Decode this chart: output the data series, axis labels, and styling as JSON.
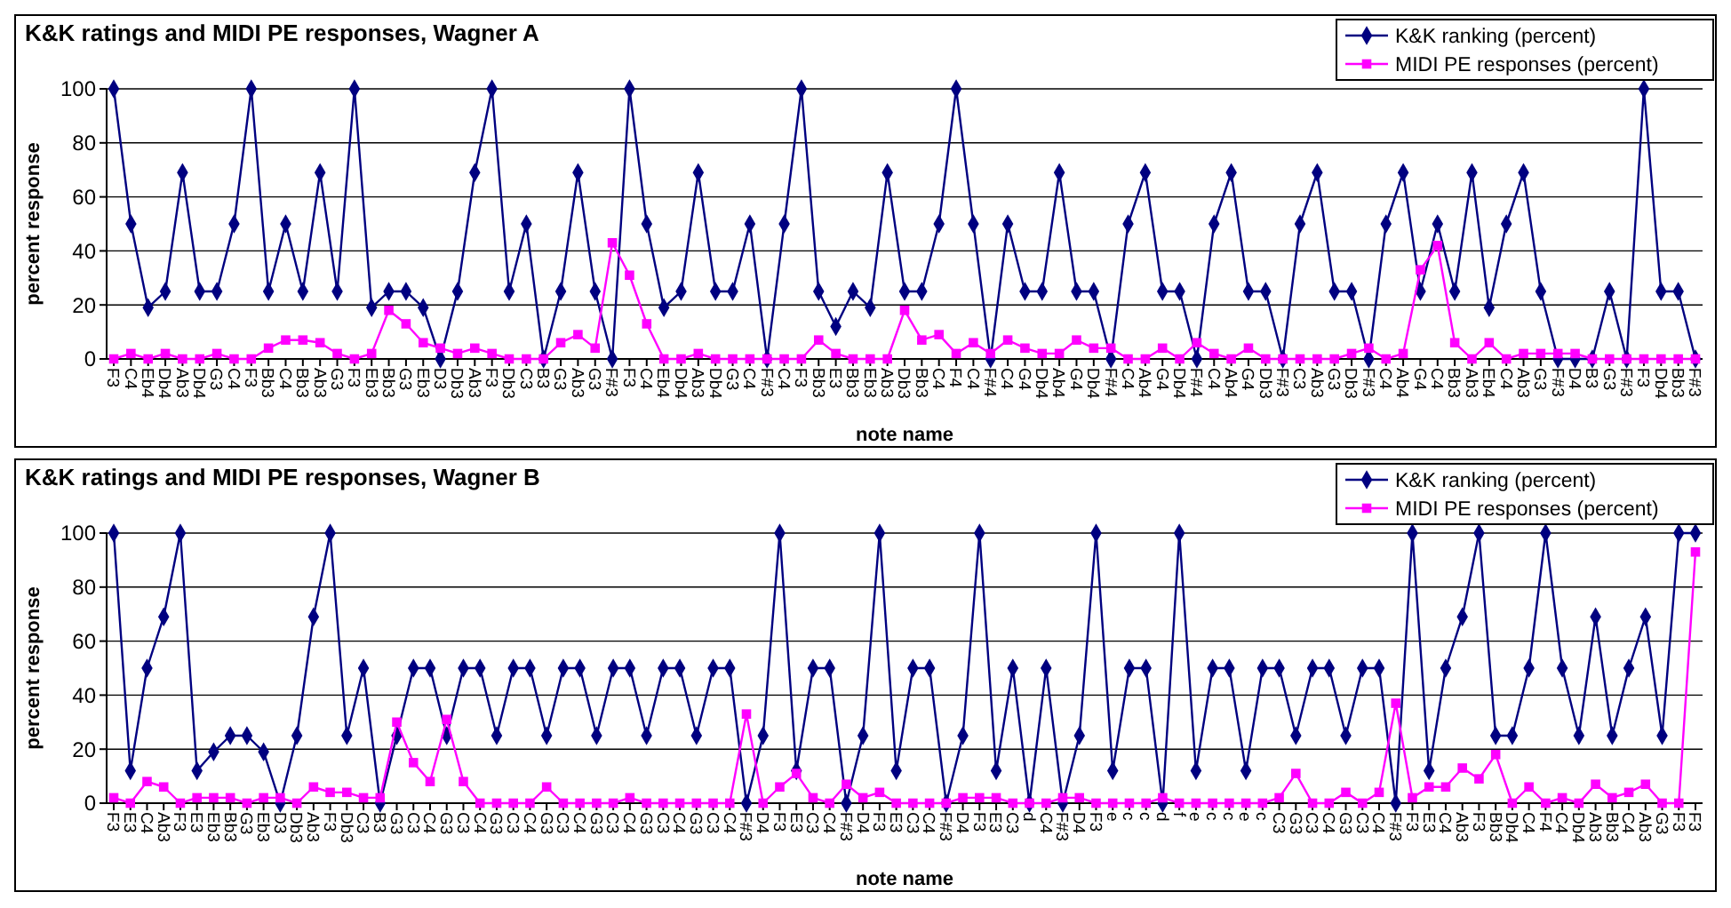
{
  "chart_data": [
    {
      "type": "line",
      "title": "K&K ratings and MIDI PE responses, Wagner A",
      "xlabel": "note name",
      "ylabel": "percent response",
      "ylim": [
        0,
        100
      ],
      "yticks": [
        0,
        20,
        40,
        60,
        80,
        100
      ],
      "grid": "y",
      "legend": "top right",
      "categories": [
        "F3",
        "C4",
        "Eb4",
        "Db4",
        "Ab3",
        "Db4",
        "G3",
        "C4",
        "F3",
        "Bb3",
        "C4",
        "Bb3",
        "Ab3",
        "G3",
        "F3",
        "Eb3",
        "Bb3",
        "G3",
        "Eb3",
        "D3",
        "Db3",
        "Ab3",
        "F3",
        "Db3",
        "C3",
        "B3",
        "G3",
        "Ab3",
        "G3",
        "F#3",
        "F3",
        "C4",
        "Eb4",
        "Db4",
        "Ab3",
        "Db4",
        "G3",
        "C4",
        "F#3",
        "C4",
        "F3",
        "Bb3",
        "E3",
        "Bb3",
        "Eb3",
        "Ab3",
        "Db3",
        "Bb3",
        "C4",
        "F4",
        "C4",
        "F#4",
        "C4",
        "G4",
        "Db4",
        "Ab4",
        "G4",
        "Db4",
        "F#4",
        "C4",
        "Ab4",
        "G4",
        "Db4",
        "F#4",
        "C4",
        "Ab4",
        "G4",
        "Db3",
        "F#3",
        "C3",
        "Ab3",
        "G3",
        "Db3",
        "F#3",
        "C4",
        "Ab4",
        "G4",
        "C4",
        "Bb3",
        "Ab3",
        "Eb4",
        "C4",
        "Ab3",
        "G3",
        "F#3",
        "D4",
        "B3",
        "G3",
        "F#3",
        "F3",
        "Db4",
        "Bb3",
        "F#3"
      ],
      "series": [
        {
          "name": "K&K ranking (percent)",
          "color": "#000080",
          "marker": "diamond",
          "values": [
            100,
            50,
            19,
            25,
            69,
            25,
            25,
            50,
            100,
            25,
            50,
            25,
            69,
            25,
            100,
            19,
            25,
            25,
            19,
            0,
            25,
            69,
            100,
            25,
            50,
            0,
            25,
            69,
            25,
            0,
            100,
            50,
            19,
            25,
            69,
            25,
            25,
            50,
            0,
            50,
            100,
            25,
            12,
            25,
            19,
            69,
            25,
            25,
            50,
            100,
            50,
            0,
            50,
            25,
            25,
            69,
            25,
            25,
            0,
            50,
            69,
            25,
            25,
            0,
            50,
            69,
            25,
            25,
            0,
            50,
            69,
            25,
            25,
            0,
            50,
            69,
            25,
            50,
            25,
            69,
            19,
            50,
            69,
            25,
            0,
            0,
            0,
            25,
            0,
            100,
            25,
            25,
            0
          ]
        },
        {
          "name": "MIDI PE responses (percent)",
          "color": "#ff00ff",
          "marker": "square",
          "values": [
            0,
            2,
            0,
            2,
            0,
            0,
            2,
            0,
            0,
            4,
            7,
            7,
            6,
            2,
            0,
            2,
            18,
            13,
            6,
            4,
            2,
            4,
            2,
            0,
            0,
            0,
            6,
            9,
            4,
            43,
            31,
            13,
            0,
            0,
            2,
            0,
            0,
            0,
            0,
            0,
            0,
            7,
            2,
            0,
            0,
            0,
            18,
            7,
            9,
            2,
            6,
            2,
            7,
            4,
            2,
            2,
            7,
            4,
            4,
            0,
            0,
            4,
            0,
            6,
            2,
            0,
            4,
            0,
            0,
            0,
            0,
            0,
            2,
            4,
            0,
            2,
            33,
            42,
            6,
            0,
            6,
            0,
            2,
            2,
            2,
            2,
            0,
            0,
            0,
            0,
            0,
            0,
            0
          ]
        }
      ]
    },
    {
      "type": "line",
      "title": "K&K ratings and MIDI PE responses, Wagner B",
      "xlabel": "note name",
      "ylabel": "percent response",
      "ylim": [
        0,
        100
      ],
      "yticks": [
        0,
        20,
        40,
        60,
        80,
        100
      ],
      "grid": "y",
      "legend": "top right",
      "categories": [
        "F3",
        "E3",
        "C4",
        "Ab3",
        "F3",
        "E3",
        "Eb3",
        "Bb3",
        "G3",
        "Eb3",
        "D3",
        "Db3",
        "Ab3",
        "F3",
        "Db3",
        "C3",
        "B3",
        "G3",
        "C3",
        "C4",
        "G3",
        "C3",
        "C4",
        "G3",
        "C3",
        "C4",
        "G3",
        "C3",
        "C4",
        "G3",
        "C3",
        "C4",
        "G3",
        "C3",
        "C4",
        "G3",
        "C3",
        "C4",
        "F#3",
        "D4",
        "F3",
        "E3",
        "C3",
        "C4",
        "F#3",
        "D4",
        "F3",
        "E3",
        "C3",
        "C4",
        "F#3",
        "D4",
        "F3",
        "E3",
        "C3",
        "d",
        "C4",
        "F#3",
        "D4",
        "F3",
        "e",
        "c",
        "c",
        "d",
        "f",
        "e",
        "c",
        "c",
        "e",
        "c",
        "C3",
        "G3",
        "C3",
        "C4",
        "G3",
        "C3",
        "C4",
        "F#3",
        "F3",
        "E3",
        "C4",
        "Ab3",
        "F3",
        "Bb3",
        "Db4",
        "C4",
        "F4",
        "C4",
        "Db4",
        "Ab3",
        "Bb3",
        "C4",
        "Ab3",
        "G3",
        "F3",
        "F3"
      ],
      "series": [
        {
          "name": "K&K ranking (percent)",
          "color": "#000080",
          "marker": "diamond",
          "values": [
            100,
            12,
            50,
            69,
            100,
            12,
            19,
            25,
            25,
            19,
            0,
            25,
            69,
            100,
            25,
            50,
            0,
            25,
            50,
            50,
            25,
            50,
            50,
            25,
            50,
            50,
            25,
            50,
            50,
            25,
            50,
            50,
            25,
            50,
            50,
            25,
            50,
            50,
            0,
            25,
            100,
            12,
            50,
            50,
            0,
            25,
            100,
            12,
            50,
            50,
            0,
            25,
            100,
            12,
            50,
            0,
            50,
            0,
            25,
            100,
            12,
            50,
            50,
            0,
            100,
            12,
            50,
            50,
            12,
            50,
            50,
            25,
            50,
            50,
            25,
            50,
            50,
            0,
            100,
            12,
            50,
            69,
            100,
            25,
            25,
            50,
            100,
            50,
            25,
            69,
            25,
            50,
            69,
            25,
            100,
            100
          ]
        },
        {
          "name": "MIDI PE responses (percent)",
          "color": "#ff00ff",
          "marker": "square",
          "values": [
            2,
            0,
            8,
            6,
            0,
            2,
            2,
            2,
            0,
            2,
            2,
            0,
            6,
            4,
            4,
            2,
            2,
            30,
            15,
            8,
            31,
            8,
            0,
            0,
            0,
            0,
            6,
            0,
            0,
            0,
            0,
            2,
            0,
            0,
            0,
            0,
            0,
            0,
            33,
            0,
            6,
            11,
            2,
            0,
            7,
            2,
            4,
            0,
            0,
            0,
            0,
            2,
            2,
            2,
            0,
            0,
            0,
            2,
            2,
            0,
            0,
            0,
            0,
            2,
            0,
            0,
            0,
            0,
            0,
            0,
            2,
            11,
            0,
            0,
            4,
            0,
            4,
            37,
            2,
            6,
            6,
            13,
            9,
            18,
            0,
            6,
            0,
            2,
            0,
            7,
            2,
            4,
            7,
            0,
            0,
            93
          ]
        }
      ]
    }
  ]
}
